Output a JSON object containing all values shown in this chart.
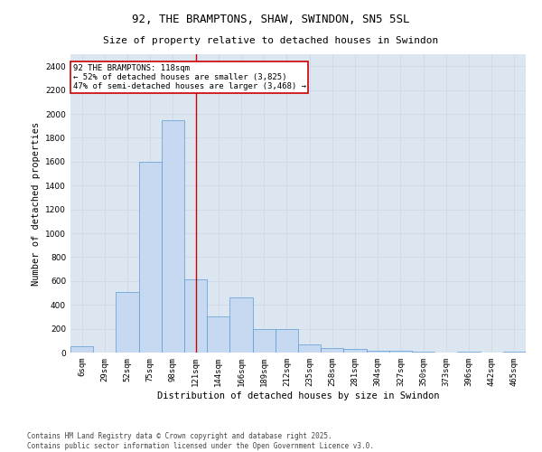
{
  "title": "92, THE BRAMPTONS, SHAW, SWINDON, SN5 5SL",
  "subtitle": "Size of property relative to detached houses in Swindon",
  "xlabel": "Distribution of detached houses by size in Swindon",
  "ylabel": "Number of detached properties",
  "categories": [
    "6sqm",
    "29sqm",
    "52sqm",
    "75sqm",
    "98sqm",
    "121sqm",
    "144sqm",
    "166sqm",
    "189sqm",
    "212sqm",
    "235sqm",
    "258sqm",
    "281sqm",
    "304sqm",
    "327sqm",
    "350sqm",
    "373sqm",
    "396sqm",
    "442sqm",
    "465sqm"
  ],
  "values": [
    55,
    0,
    510,
    1600,
    1950,
    610,
    300,
    465,
    195,
    195,
    65,
    35,
    30,
    15,
    15,
    10,
    0,
    5,
    0,
    10
  ],
  "bar_color": "#c6d9f0",
  "bar_edge_color": "#5b9bd5",
  "grid_color": "#d0d8e4",
  "background_color": "#dce6f1",
  "annotation_box_color": "#cc0000",
  "vline_color": "#cc0000",
  "vline_x": 5.0,
  "annotation_text": "92 THE BRAMPTONS: 118sqm\n← 52% of detached houses are smaller (3,825)\n47% of semi-detached houses are larger (3,468) →",
  "ylim": [
    0,
    2500
  ],
  "yticks": [
    0,
    200,
    400,
    600,
    800,
    1000,
    1200,
    1400,
    1600,
    1800,
    2000,
    2200,
    2400
  ],
  "footer_line1": "Contains HM Land Registry data © Crown copyright and database right 2025.",
  "footer_line2": "Contains public sector information licensed under the Open Government Licence v3.0.",
  "title_fontsize": 9,
  "subtitle_fontsize": 8,
  "axis_label_fontsize": 7.5,
  "tick_fontsize": 6.5,
  "annotation_fontsize": 6.5,
  "footer_fontsize": 5.5,
  "ylabel_fontsize": 7.5
}
